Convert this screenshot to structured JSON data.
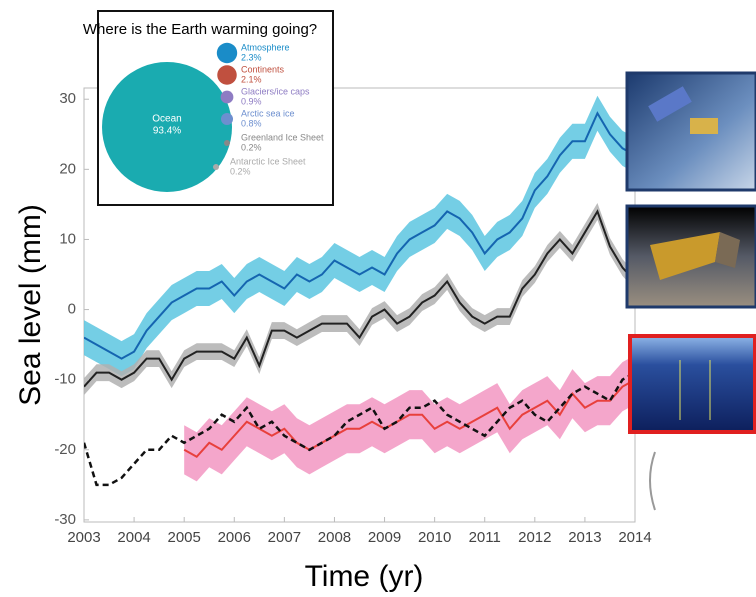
{
  "chart_data": [
    {
      "type": "line",
      "x_label": "Time (yr)",
      "y_label": "Sea level (mm)",
      "xlim": [
        2003,
        2014
      ],
      "xticks": [
        2003,
        2004,
        2005,
        2006,
        2007,
        2008,
        2009,
        2010,
        2011,
        2012,
        2013,
        2014
      ],
      "ylim": [
        -30.3,
        31.6
      ],
      "yticks": [
        -30,
        -20,
        -10,
        0,
        10,
        20,
        30
      ],
      "x": [
        2003.0,
        2003.25,
        2003.5,
        2003.75,
        2004.0,
        2004.25,
        2004.5,
        2004.75,
        2005.0,
        2005.25,
        2005.5,
        2005.75,
        2006.0,
        2006.25,
        2006.5,
        2006.75,
        2007.0,
        2007.25,
        2007.5,
        2007.75,
        2008.0,
        2008.25,
        2008.5,
        2008.75,
        2009.0,
        2009.25,
        2009.5,
        2009.75,
        2010.0,
        2010.25,
        2010.5,
        2010.75,
        2011.0,
        2011.25,
        2011.5,
        2011.75,
        2012.0,
        2012.25,
        2012.5,
        2012.75,
        2013.0,
        2013.25,
        2013.5,
        2013.75,
        2014.0
      ],
      "series": [
        {
          "color": "#1565b0",
          "band_color": "#5cc6e0",
          "error": 2.5,
          "dashed": false,
          "values": [
            -4,
            -5,
            -6,
            -7,
            -6,
            -3,
            -1,
            1,
            2,
            3,
            3,
            4,
            2,
            4,
            5,
            4,
            3,
            5,
            4,
            5,
            7,
            6,
            5,
            6,
            5,
            8,
            10,
            11,
            12,
            14,
            13,
            11,
            8,
            10,
            11,
            13,
            17,
            19,
            22,
            24,
            24,
            28,
            25,
            23,
            22
          ]
        },
        {
          "color": "#222222",
          "band_color": "#b0b0b0",
          "error": 1.2,
          "dashed": false,
          "values": [
            -11,
            -9,
            -9,
            -10,
            -9,
            -7,
            -7,
            -10,
            -7,
            -6,
            -6,
            -6,
            -7,
            -4,
            -8,
            -3,
            -3,
            -4,
            -3,
            -2,
            -2,
            -2,
            -4,
            -1,
            0,
            -2,
            -1,
            1,
            2,
            4,
            1,
            -1,
            -2,
            -1,
            -1,
            3,
            5,
            8,
            10,
            8,
            11,
            14,
            9,
            6,
            4
          ]
        },
        {
          "color": "#e8403c",
          "band_color": "#f297c2",
          "error": 3.5,
          "dashed": false,
          "values": [
            null,
            null,
            null,
            null,
            null,
            null,
            null,
            null,
            -20,
            -21,
            -19,
            -20,
            -18,
            -16,
            -17,
            -18,
            -17,
            -19,
            -20,
            -19,
            -18,
            -17,
            -17,
            -16,
            -17,
            -16,
            -15,
            -15,
            -17,
            -16,
            -17,
            -16,
            -15,
            -14,
            -17,
            -15,
            -14,
            -13,
            -15,
            -12,
            -14,
            -13,
            -13,
            -11,
            -10
          ]
        },
        {
          "color": "#111111",
          "dashed": true,
          "values": [
            -19,
            -25,
            -25,
            -24,
            -22,
            -20,
            -20,
            -18,
            -19,
            -18,
            -17,
            -15,
            -16,
            -14,
            -17,
            -16,
            -18,
            -19,
            -20,
            -19,
            -18,
            -16,
            -15,
            -14,
            -17,
            -16,
            -14,
            -14,
            -13,
            -15,
            -16,
            -17,
            -18,
            -16,
            -14,
            -13,
            -15,
            -16,
            -14,
            -12,
            -11,
            -12,
            -13,
            -10,
            -9
          ]
        }
      ]
    },
    {
      "type": "bubble",
      "title": "Where is the Earth warming going?",
      "categories": [
        "Ocean",
        "Atmosphere",
        "Continents",
        "Glaciers/ice caps",
        "Arctic sea ice",
        "Greenland Ice Sheet",
        "Antarctic Ice Sheet"
      ],
      "values": [
        93.4,
        2.3,
        2.1,
        0.9,
        0.8,
        0.2,
        0.2
      ],
      "value_labels": [
        "93.4%",
        "2.3%",
        "2.1%",
        "0.9%",
        "0.8%",
        "0.2%",
        "0.2%"
      ],
      "colors": [
        "#1aabb0",
        "#1a8cc8",
        "#c0503f",
        "#8e7cc3",
        "#6d8fcf",
        "#888888",
        "#aaaaaa"
      ]
    }
  ]
}
